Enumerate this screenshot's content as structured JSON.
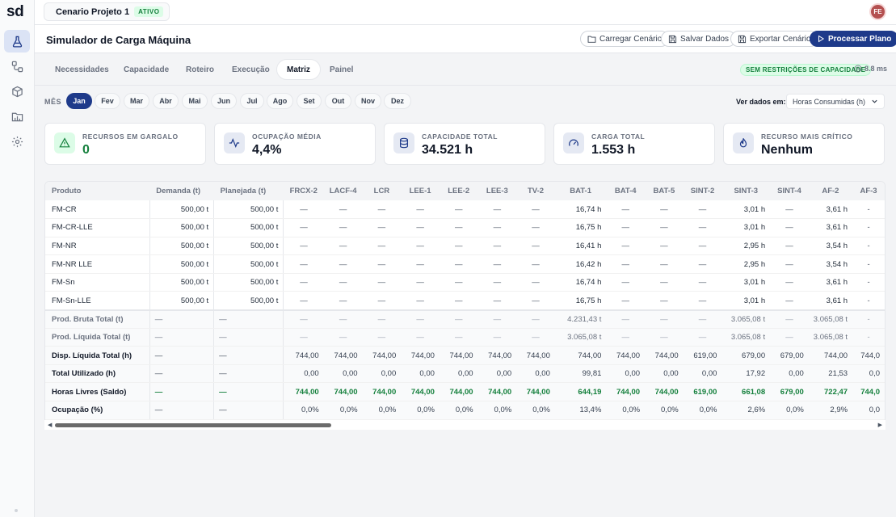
{
  "app": {
    "logo": "sd",
    "avatar_initials": "FE"
  },
  "sidebar": {
    "items": [
      {
        "icon": "flask-icon"
      },
      {
        "icon": "flow-icon"
      },
      {
        "icon": "box-icon"
      },
      {
        "icon": "folder-icon"
      },
      {
        "icon": "gear-icon"
      }
    ]
  },
  "project": {
    "name": "Cenario Projeto 1",
    "status": "ATIVO"
  },
  "header": {
    "title": "Simulador de Carga Máquina",
    "load_label": "Carregar Cenário",
    "save_label": "Salvar Dados",
    "export_label": "Exportar Cenário",
    "process_label": "Processar Plano"
  },
  "tabs": [
    "Necessidades",
    "Capacidade",
    "Roteiro",
    "Execução",
    "Matriz",
    "Painel"
  ],
  "active_tab": "Matriz",
  "status": {
    "restriction_badge": "SEM RESTRIÇÕES DE CAPACIDADE",
    "timing": "8.8 ms"
  },
  "months": {
    "label": "MÊS",
    "items": [
      "Jan",
      "Fev",
      "Mar",
      "Abr",
      "Mai",
      "Jun",
      "Jul",
      "Ago",
      "Set",
      "Out",
      "Nov",
      "Dez"
    ],
    "active": "Jan"
  },
  "view": {
    "label": "Ver dados em:",
    "selected": "Horas Consumidas (h)"
  },
  "kpis": [
    {
      "label": "RECURSOS EM GARGALO",
      "value": "0",
      "icon": "warning-icon",
      "color": "#15803d"
    },
    {
      "label": "OCUPAÇÃO MÉDIA",
      "value": "4,4%",
      "icon": "activity-icon",
      "color": "#111827"
    },
    {
      "label": "CAPACIDADE TOTAL",
      "value": "34.521 h",
      "icon": "database-icon",
      "color": "#111827"
    },
    {
      "label": "CARGA TOTAL",
      "value": "1.553 h",
      "icon": "gauge-icon",
      "color": "#111827"
    },
    {
      "label": "RECURSO MAIS CRÍTICO",
      "value": "Nenhum",
      "icon": "flame-icon",
      "color": "#111827"
    }
  ],
  "table": {
    "columns": [
      "Produto",
      "Demanda (t)",
      "Planejada (t)",
      "FRCX-2",
      "LACF-4",
      "LCR",
      "LEE-1",
      "LEE-2",
      "LEE-3",
      "TV-2",
      "BAT-1",
      "BAT-4",
      "BAT-5",
      "SINT-2",
      "SINT-3",
      "SINT-4",
      "AF-2",
      "AF-3"
    ],
    "rows": [
      [
        "FM-CR",
        "500,00 t",
        "500,00 t",
        "—",
        "—",
        "—",
        "—",
        "—",
        "—",
        "—",
        "16,74 h",
        "—",
        "—",
        "—",
        "3,01 h",
        "—",
        "3,61 h",
        "-"
      ],
      [
        "FM-CR-LLE",
        "500,00 t",
        "500,00 t",
        "—",
        "—",
        "—",
        "—",
        "—",
        "—",
        "—",
        "16,75 h",
        "—",
        "—",
        "—",
        "3,01 h",
        "—",
        "3,61 h",
        "-"
      ],
      [
        "FM-NR",
        "500,00 t",
        "500,00 t",
        "—",
        "—",
        "—",
        "—",
        "—",
        "—",
        "—",
        "16,41 h",
        "—",
        "—",
        "—",
        "2,95 h",
        "—",
        "3,54 h",
        "-"
      ],
      [
        "FM-NR LLE",
        "500,00 t",
        "500,00 t",
        "—",
        "—",
        "—",
        "—",
        "—",
        "—",
        "—",
        "16,42 h",
        "—",
        "—",
        "—",
        "2,95 h",
        "—",
        "3,54 h",
        "-"
      ],
      [
        "FM-Sn",
        "500,00 t",
        "500,00 t",
        "—",
        "—",
        "—",
        "—",
        "—",
        "—",
        "—",
        "16,74 h",
        "—",
        "—",
        "—",
        "3,01 h",
        "—",
        "3,61 h",
        "-"
      ],
      [
        "FM-Sn-LLE",
        "500,00 t",
        "500,00 t",
        "—",
        "—",
        "—",
        "—",
        "—",
        "—",
        "—",
        "16,75 h",
        "—",
        "—",
        "—",
        "3,01 h",
        "—",
        "3,61 h",
        "-"
      ]
    ],
    "summary": [
      {
        "label": "Prod. Bruta Total (t)",
        "style": "sum",
        "values": [
          "—",
          "—",
          "—",
          "—",
          "—",
          "—",
          "—",
          "—",
          "—",
          "4.231,43 t",
          "—",
          "—",
          "—",
          "3.065,08 t",
          "—",
          "3.065,08 t",
          "-"
        ]
      },
      {
        "label": "Prod. Líquida Total (t)",
        "style": "sum",
        "values": [
          "—",
          "—",
          "—",
          "—",
          "—",
          "—",
          "—",
          "—",
          "—",
          "3.065,08 t",
          "—",
          "—",
          "—",
          "3.065,08 t",
          "—",
          "3.065,08 t",
          "-"
        ]
      },
      {
        "label": "Disp. Líquida Total (h)",
        "style": "sum dark",
        "values": [
          "—",
          "—",
          "744,00",
          "744,00",
          "744,00",
          "744,00",
          "744,00",
          "744,00",
          "744,00",
          "744,00",
          "744,00",
          "744,00",
          "619,00",
          "679,00",
          "679,00",
          "744,00",
          "744,0"
        ]
      },
      {
        "label": "Total Utilizado (h)",
        "style": "sum dark",
        "values": [
          "—",
          "—",
          "0,00",
          "0,00",
          "0,00",
          "0,00",
          "0,00",
          "0,00",
          "0,00",
          "99,81",
          "0,00",
          "0,00",
          "0,00",
          "17,92",
          "0,00",
          "21,53",
          "0,0"
        ]
      },
      {
        "label": "Horas Livres (Saldo)",
        "style": "sum green",
        "values": [
          "—",
          "—",
          "744,00",
          "744,00",
          "744,00",
          "744,00",
          "744,00",
          "744,00",
          "744,00",
          "644,19",
          "744,00",
          "744,00",
          "619,00",
          "661,08",
          "679,00",
          "722,47",
          "744,0"
        ]
      },
      {
        "label": "Ocupação (%)",
        "style": "sum dark",
        "values": [
          "—",
          "—",
          "0,0%",
          "0,0%",
          "0,0%",
          "0,0%",
          "0,0%",
          "0,0%",
          "0,0%",
          "13,4%",
          "0,0%",
          "0,0%",
          "0,0%",
          "2,6%",
          "0,0%",
          "2,9%",
          "0,0"
        ]
      }
    ]
  },
  "scroll": {
    "left_arrow": "◀",
    "right_arrow": "▶"
  }
}
